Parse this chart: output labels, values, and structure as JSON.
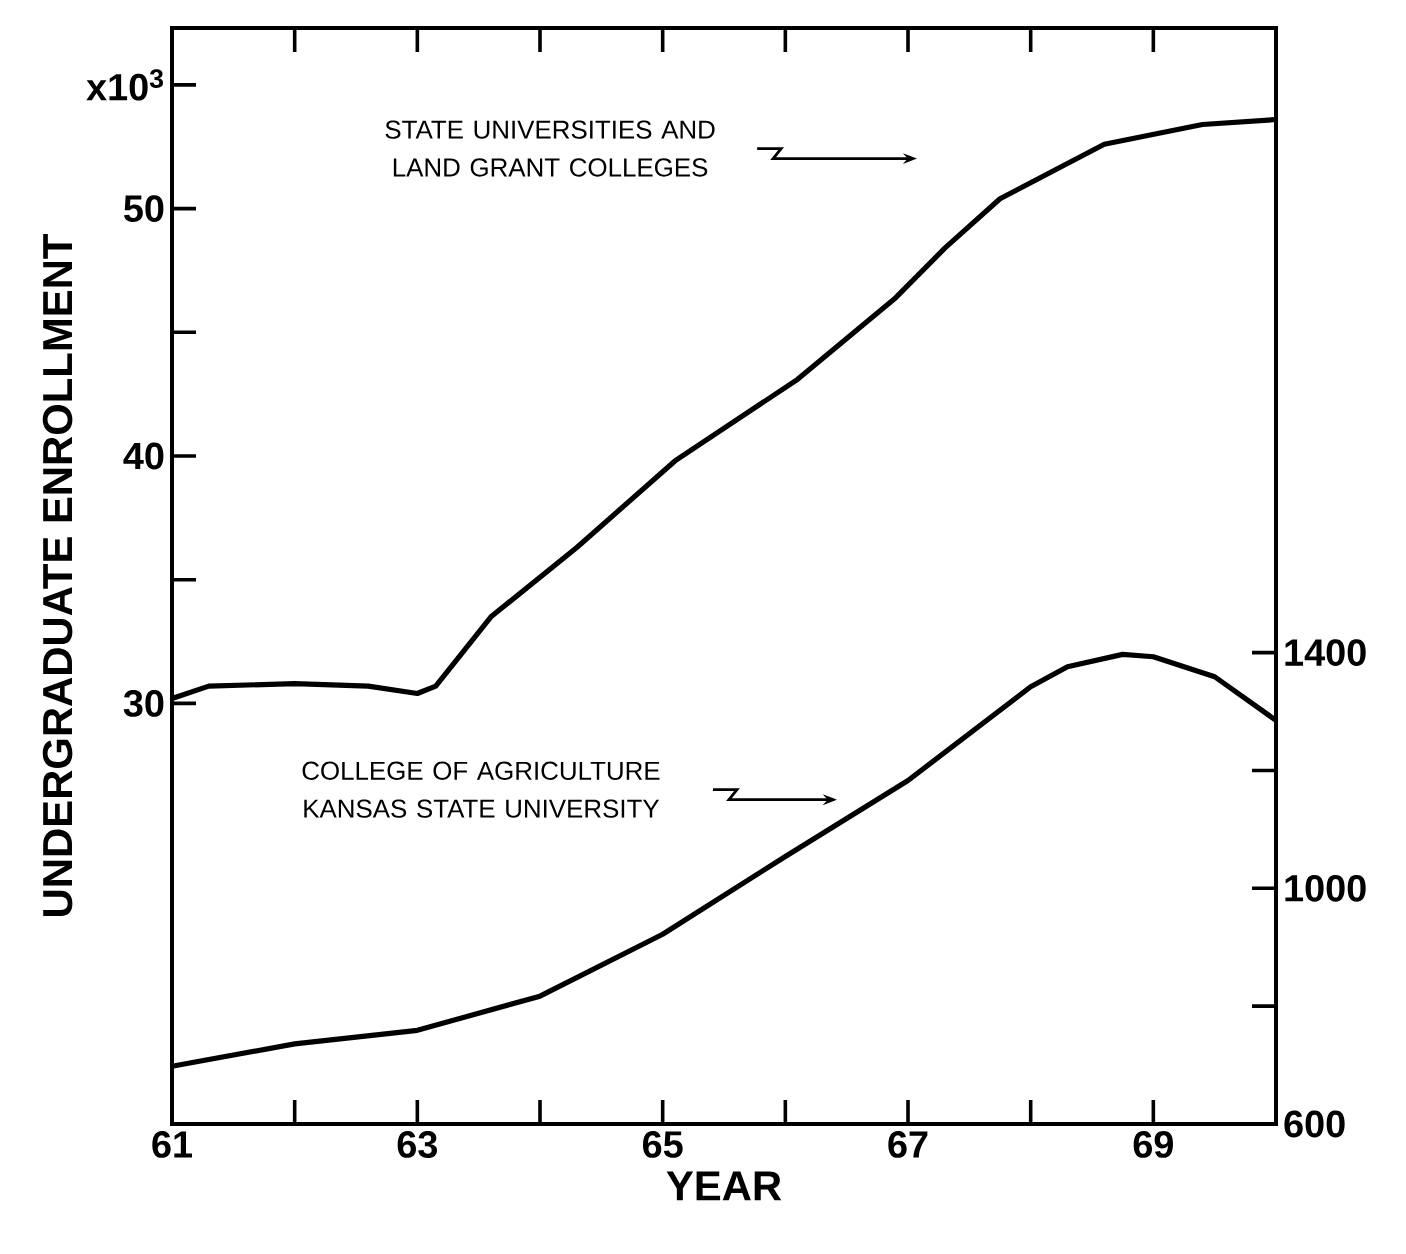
{
  "chart_data": {
    "type": "line",
    "xlabel": "YEAR",
    "ylabel": "UNDERGRADUATE ENROLLMENT",
    "xlim": [
      61,
      70
    ],
    "xticks": [
      61,
      {
        "value": 62,
        "label": null
      },
      63,
      {
        "value": 64,
        "label": null
      },
      65,
      {
        "value": 66,
        "label": null
      },
      67,
      {
        "value": 68,
        "label": null
      },
      69
    ],
    "ylim": [
      13,
      57.3
    ],
    "yticks": [
      30,
      {
        "value": 35,
        "label": null
      },
      40,
      {
        "value": 45,
        "label": null
      },
      50,
      {
        "value": 55,
        "label": "x10$^{3}$"
      }
    ],
    "y2lim": [
      600,
      2460
    ],
    "y2ticks": [
      600,
      {
        "value": 800,
        "label": null
      },
      1000,
      {
        "value": 1200,
        "label": null
      },
      1400
    ],
    "series": [
      {
        "color": "#000000",
        "x": [
          61,
          61.3,
          62,
          62.6,
          63,
          63.15,
          63.6,
          64.3,
          65.1,
          66.1,
          66.9,
          67.3,
          67.75,
          68.6,
          69.4,
          70
        ],
        "values": [
          30.2,
          30.7,
          30.8,
          30.7,
          30.4,
          30.7,
          33.5,
          36.3,
          39.8,
          43.1,
          46.4,
          48.4,
          50.4,
          52.6,
          53.4,
          53.6
        ]
      },
      {
        "color": "#000000",
        "axis": "y2",
        "x": [
          61,
          62,
          63,
          64,
          65,
          66,
          67,
          68,
          68.3,
          68.75,
          69,
          69.5,
          70
        ],
        "values": [
          698,
          736,
          759,
          817,
          922,
          1054,
          1183,
          1342,
          1376,
          1397,
          1393,
          1359,
          1285
        ]
      }
    ],
    "annotations": [
      "STATE UNIVERSITIES AND LAND GRANT COLLEGES",
      "COLLEGE OF AGRICULTURE KANSAS STATE UNIVERSITY"
    ]
  }
}
